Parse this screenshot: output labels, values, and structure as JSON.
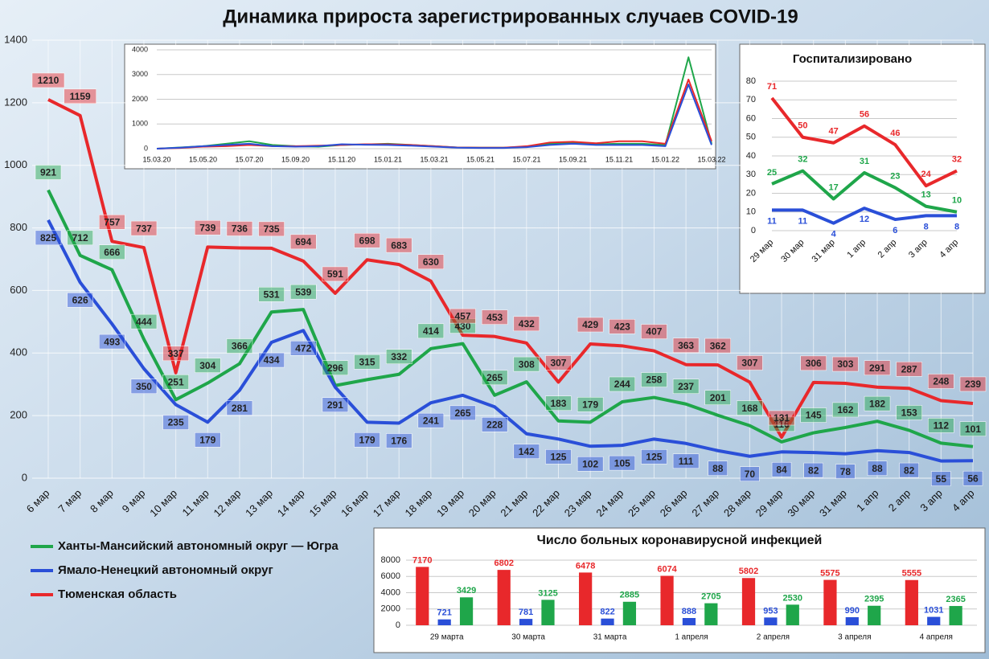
{
  "chart_data": [
    {
      "type": "line",
      "title": "Динамика прироста зарегистрированных случаев COVID-19",
      "categories": [
        "6 мар",
        "7 мар",
        "8 мар",
        "9 мар",
        "10 мар",
        "11 мар",
        "12 мар",
        "13 мар",
        "14 мар",
        "15 мар",
        "16 мар",
        "17 мар",
        "18 мар",
        "19 мар",
        "20 мар",
        "21 мар",
        "22 мар",
        "23 мар",
        "24 мар",
        "25 мар",
        "26 мар",
        "27 мар",
        "28 мар",
        "29 мар",
        "30 мар",
        "31 мар",
        "1 апр",
        "2 апр",
        "3 апр",
        "4 апр"
      ],
      "series": [
        {
          "name": "Ханты-Мансийский автономный округ — Югра",
          "color": "#1fa64a",
          "values": [
            921,
            712,
            666,
            444,
            251,
            304,
            366,
            531,
            539,
            296,
            315,
            332,
            414,
            430,
            265,
            308,
            183,
            179,
            244,
            258,
            237,
            201,
            168,
            116,
            145,
            162,
            182,
            153,
            112,
            101
          ]
        },
        {
          "name": "Ямало-Ненецкий автономный округ",
          "color": "#2a4fd8",
          "values": [
            825,
            626,
            493,
            350,
            235,
            179,
            281,
            434,
            472,
            291,
            179,
            176,
            241,
            265,
            228,
            142,
            125,
            102,
            105,
            125,
            111,
            88,
            70,
            84,
            82,
            78,
            88,
            82,
            55,
            56
          ]
        },
        {
          "name": "Тюменская область",
          "color": "#e8282b",
          "values": [
            1210,
            1159,
            757,
            737,
            337,
            739,
            736,
            735,
            694,
            591,
            698,
            683,
            630,
            457,
            453,
            432,
            307,
            429,
            423,
            407,
            363,
            362,
            307,
            131,
            306,
            303,
            291,
            287,
            248,
            239
          ]
        }
      ],
      "ylim": [
        0,
        1400
      ],
      "yticks": [
        0,
        200,
        400,
        600,
        800,
        1000,
        1200,
        1400
      ],
      "grid": true
    },
    {
      "type": "line",
      "categories": [
        "15.03.20",
        null,
        "15.05.20",
        null,
        "15.07.20",
        null,
        "15.09.20",
        null,
        "15.11.20",
        null,
        "15.01.21",
        null,
        "15.03.21",
        null,
        "15.05.21",
        null,
        "15.07.21",
        null,
        "15.09.21",
        null,
        "15.11.21",
        null,
        "15.01.22",
        null,
        "15.03.22"
      ],
      "series": [
        {
          "color": "#1fa64a",
          "values": [
            0,
            50,
            100,
            200,
            300,
            150,
            100,
            80,
            150,
            170,
            200,
            150,
            100,
            50,
            40,
            40,
            80,
            200,
            220,
            180,
            200,
            200,
            150,
            3700,
            200
          ]
        },
        {
          "color": "#e8282b",
          "values": [
            0,
            30,
            80,
            100,
            150,
            100,
            100,
            120,
            150,
            180,
            180,
            150,
            100,
            50,
            40,
            40,
            100,
            250,
            280,
            220,
            300,
            300,
            200,
            2800,
            300
          ]
        },
        {
          "color": "#2a4fd8",
          "values": [
            0,
            40,
            100,
            150,
            200,
            100,
            80,
            100,
            180,
            160,
            150,
            120,
            80,
            40,
            30,
            30,
            60,
            150,
            200,
            150,
            150,
            150,
            100,
            2600,
            150
          ]
        }
      ],
      "ylim": [
        0,
        4000
      ],
      "yticks": [
        0,
        1000,
        2000,
        3000,
        4000
      ],
      "grid": true
    },
    {
      "type": "line",
      "title": "Госпитализировано",
      "categories": [
        "29 мар",
        "30 мар",
        "31 мар",
        "1 апр",
        "2 апр",
        "3 апр",
        "4 апр"
      ],
      "series": [
        {
          "color": "#e8282b",
          "values": [
            71,
            50,
            47,
            56,
            46,
            24,
            32
          ]
        },
        {
          "color": "#1fa64a",
          "values": [
            25,
            32,
            17,
            31,
            23,
            13,
            10
          ]
        },
        {
          "color": "#2a4fd8",
          "values": [
            11,
            11,
            4,
            12,
            6,
            8,
            8
          ]
        }
      ],
      "ylim": [
        0,
        80
      ],
      "yticks": [
        0,
        10,
        20,
        30,
        40,
        50,
        60,
        70,
        80
      ],
      "grid": true
    },
    {
      "type": "bar",
      "title": "Число больных коронавирусной инфекцией",
      "categories": [
        "29 марта",
        "30 марта",
        "31 марта",
        "1 апреля",
        "2 апреля",
        "3 апреля",
        "4 апреля"
      ],
      "series": [
        {
          "color": "#e8282b",
          "values": [
            7170,
            6802,
            6478,
            6074,
            5802,
            5575,
            5555
          ]
        },
        {
          "color": "#2a4fd8",
          "values": [
            721,
            781,
            822,
            888,
            953,
            990,
            1031
          ]
        },
        {
          "color": "#1fa64a",
          "values": [
            3429,
            3125,
            2885,
            2705,
            2530,
            2395,
            2365
          ]
        }
      ],
      "ylim": [
        0,
        8000
      ],
      "yticks": [
        0,
        2000,
        4000,
        6000,
        8000
      ],
      "grid": true
    }
  ]
}
